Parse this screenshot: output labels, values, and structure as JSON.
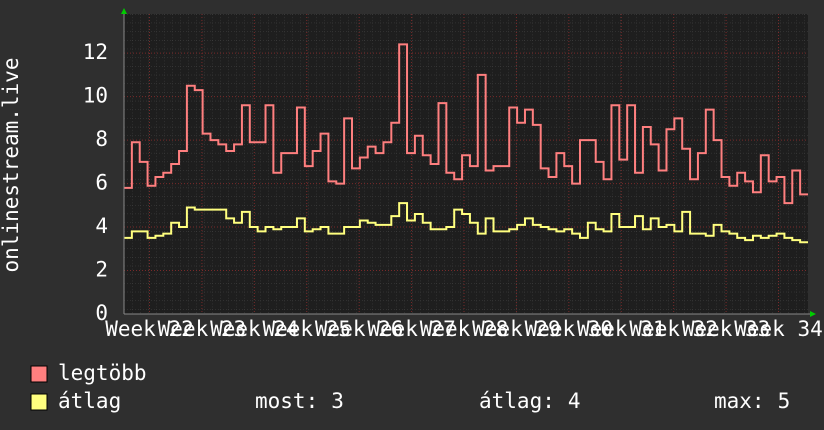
{
  "chart_data": {
    "type": "step",
    "y_label": "onlinestream.live",
    "ylim": [
      0,
      13.8
    ],
    "yticks": [
      0,
      2,
      4,
      6,
      8,
      10,
      12
    ],
    "x_labels": [
      "Week 22",
      "Week 23",
      "Week 24",
      "Week 25",
      "Week 26",
      "Week 27",
      "Week 28",
      "Week 29",
      "Week 30",
      "Week 31",
      "Week 32",
      "Week 33",
      "Week 34"
    ],
    "grid": true,
    "series": [
      {
        "name": "legtöbb",
        "color": "#ff7f7f",
        "values": [
          5.8,
          7.9,
          7.0,
          5.9,
          6.3,
          6.5,
          6.9,
          7.5,
          10.5,
          10.3,
          8.3,
          8.0,
          7.8,
          7.5,
          7.8,
          9.6,
          7.9,
          7.9,
          9.6,
          6.5,
          7.4,
          7.4,
          9.5,
          6.8,
          7.5,
          8.3,
          6.1,
          6.0,
          9.0,
          6.7,
          7.2,
          7.7,
          7.4,
          7.9,
          8.8,
          12.4,
          7.4,
          8.2,
          7.3,
          6.9,
          9.7,
          6.5,
          6.2,
          7.3,
          6.8,
          11.0,
          6.6,
          6.8,
          6.8,
          9.5,
          8.8,
          9.4,
          8.7,
          6.7,
          6.3,
          7.4,
          6.8,
          6.0,
          8.0,
          8.0,
          7.0,
          6.2,
          9.6,
          7.1,
          9.6,
          6.5,
          8.6,
          7.8,
          6.6,
          8.5,
          9.0,
          7.6,
          6.2,
          7.4,
          9.4,
          8.0,
          6.3,
          5.9,
          6.5,
          6.1,
          5.6,
          7.3,
          6.1,
          6.3,
          5.1,
          6.6,
          5.5
        ]
      },
      {
        "name": "átlag",
        "color": "#ffff7f",
        "values": [
          3.5,
          3.8,
          3.8,
          3.5,
          3.6,
          3.7,
          4.2,
          4.0,
          4.9,
          4.8,
          4.8,
          4.8,
          4.8,
          4.4,
          4.2,
          4.7,
          4.0,
          3.8,
          4.0,
          3.9,
          4.0,
          4.0,
          4.4,
          3.8,
          3.9,
          4.0,
          3.7,
          3.7,
          4.0,
          4.0,
          4.3,
          4.2,
          4.1,
          4.1,
          4.5,
          5.1,
          4.3,
          4.6,
          4.2,
          3.9,
          3.9,
          4.0,
          4.8,
          4.6,
          4.2,
          3.7,
          4.4,
          3.8,
          3.8,
          3.9,
          4.1,
          4.4,
          4.1,
          4.0,
          3.9,
          3.8,
          3.9,
          3.7,
          3.5,
          4.2,
          3.9,
          3.8,
          4.6,
          4.0,
          4.0,
          4.5,
          3.9,
          4.4,
          4.0,
          4.1,
          3.8,
          4.7,
          3.7,
          3.7,
          3.6,
          4.1,
          3.8,
          3.7,
          3.5,
          3.4,
          3.6,
          3.5,
          3.6,
          3.7,
          3.5,
          3.4,
          3.3
        ]
      }
    ],
    "legend_stats": [
      {
        "label": "most:",
        "value": 3
      },
      {
        "label": "átlag:",
        "value": 4
      },
      {
        "label": "max:",
        "value": 5
      }
    ]
  }
}
